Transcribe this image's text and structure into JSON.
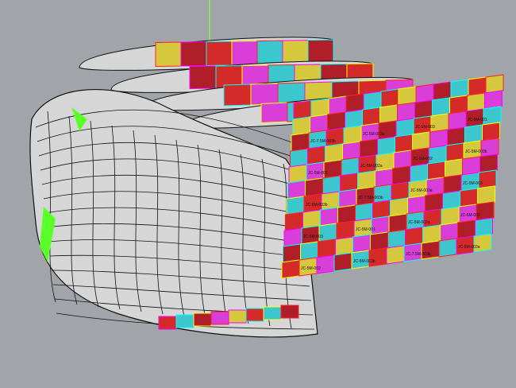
{
  "viewport": {
    "background": "#a1a5aa",
    "axis_color": "#7cff3a",
    "shell_color": "#d6d6d6",
    "edge_color": "#111111",
    "panel_colors": [
      "#d42a2a",
      "#d93ed9",
      "#3cc7cf",
      "#d6c83c",
      "#b01e2a"
    ],
    "highlight_colors": [
      "#ff00ff",
      "#00ffff",
      "#ffff00",
      "#ff2020"
    ]
  },
  "panel_labels": [
    "JC-5M-003b",
    "JC-5M-002a",
    "JC-5M-003",
    "JC-7.5M-003b",
    "JC-5M-002",
    "JC-5M-001",
    "JC-5M-003a"
  ]
}
